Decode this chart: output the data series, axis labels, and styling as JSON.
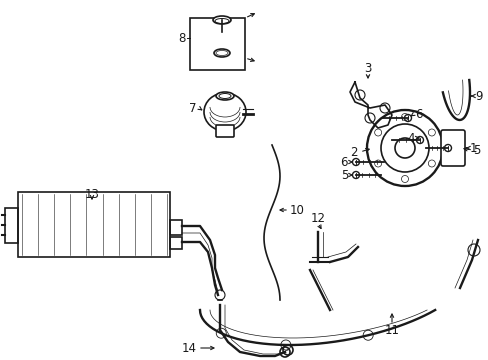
{
  "bg_color": "#ffffff",
  "line_color": "#1a1a1a",
  "figsize": [
    4.89,
    3.6
  ],
  "dpi": 100,
  "fontsize": 8.5,
  "lw": 1.2
}
